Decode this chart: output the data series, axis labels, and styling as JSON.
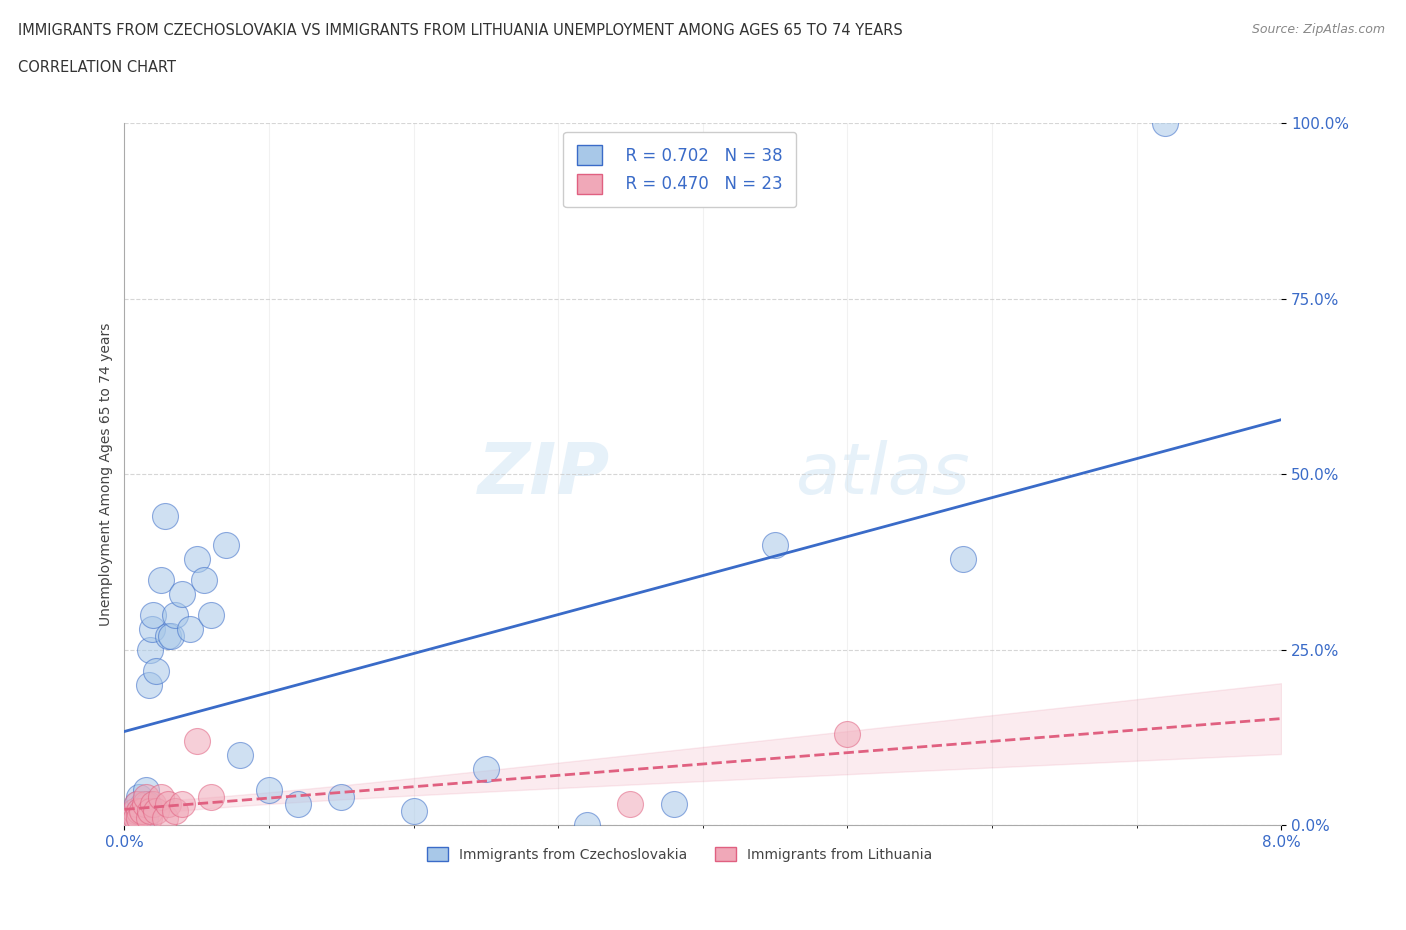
{
  "title_line1": "IMMIGRANTS FROM CZECHOSLOVAKIA VS IMMIGRANTS FROM LITHUANIA UNEMPLOYMENT AMONG AGES 65 TO 74 YEARS",
  "title_line2": "CORRELATION CHART",
  "source": "Source: ZipAtlas.com",
  "xlabel_czech": "Immigrants from Czechoslovakia",
  "xlabel_lith": "Immigrants from Lithuania",
  "ylabel": "Unemployment Among Ages 65 to 74 years",
  "xlim": [
    0.0,
    8.0
  ],
  "ylim": [
    0.0,
    100.0
  ],
  "x_tick_labels": [
    "0.0%",
    "8.0%"
  ],
  "y_tick_labels": [
    "0.0%",
    "25.0%",
    "50.0%",
    "75.0%",
    "100.0%"
  ],
  "r_czech": 0.702,
  "n_czech": 38,
  "r_lith": 0.47,
  "n_lith": 23,
  "blue_scatter_color": "#a8c8e8",
  "blue_line_color": "#3a6bc8",
  "pink_scatter_color": "#f0a8b8",
  "pink_line_color": "#e06080",
  "background_color": "#ffffff",
  "watermark_zip": "ZIP",
  "watermark_atlas": "atlas",
  "czech_x": [
    0.05,
    0.07,
    0.08,
    0.09,
    0.1,
    0.1,
    0.12,
    0.13,
    0.14,
    0.15,
    0.16,
    0.17,
    0.18,
    0.19,
    0.2,
    0.22,
    0.25,
    0.28,
    0.3,
    0.32,
    0.35,
    0.4,
    0.45,
    0.5,
    0.55,
    0.6,
    0.7,
    0.8,
    1.0,
    1.2,
    1.5,
    2.0,
    2.5,
    3.2,
    3.8,
    4.5,
    5.8,
    7.2
  ],
  "czech_y": [
    1,
    2,
    1,
    3,
    2,
    4,
    2,
    3,
    1,
    5,
    3,
    20,
    25,
    28,
    30,
    22,
    35,
    44,
    27,
    27,
    30,
    33,
    28,
    38,
    35,
    30,
    40,
    10,
    5,
    3,
    4,
    2,
    8,
    0,
    3,
    40,
    38,
    100
  ],
  "lith_x": [
    0.05,
    0.06,
    0.07,
    0.08,
    0.09,
    0.1,
    0.1,
    0.12,
    0.14,
    0.15,
    0.17,
    0.18,
    0.2,
    0.22,
    0.25,
    0.28,
    0.3,
    0.35,
    0.4,
    0.5,
    0.6,
    3.5,
    5.0
  ],
  "lith_y": [
    1,
    1,
    2,
    1,
    3,
    2,
    1,
    2,
    3,
    4,
    1,
    2,
    3,
    2,
    4,
    1,
    3,
    2,
    3,
    12,
    4,
    3,
    13
  ]
}
